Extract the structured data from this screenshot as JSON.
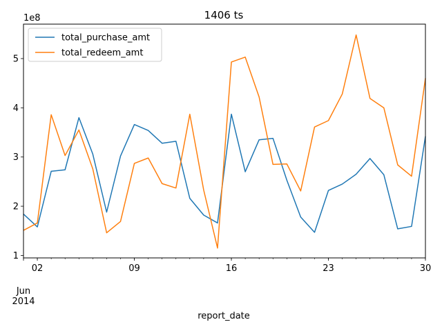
{
  "chart_data": {
    "type": "line",
    "title": "1406 ts",
    "xlabel": "report_date",
    "ylabel": "",
    "y_offset_label": "1e8",
    "y_scale_factor": 100000000,
    "x": [
      "2014-06-01",
      "2014-06-02",
      "2014-06-03",
      "2014-06-04",
      "2014-06-05",
      "2014-06-06",
      "2014-06-07",
      "2014-06-08",
      "2014-06-09",
      "2014-06-10",
      "2014-06-11",
      "2014-06-12",
      "2014-06-13",
      "2014-06-14",
      "2014-06-15",
      "2014-06-16",
      "2014-06-17",
      "2014-06-18",
      "2014-06-19",
      "2014-06-20",
      "2014-06-21",
      "2014-06-22",
      "2014-06-23",
      "2014-06-24",
      "2014-06-25",
      "2014-06-26",
      "2014-06-27",
      "2014-06-28",
      "2014-06-29",
      "2014-06-30"
    ],
    "xlim": [
      "2014-06-01",
      "2014-06-30"
    ],
    "ylim": [
      95000000,
      570000000
    ],
    "x_ticks": [
      {
        "label": "02",
        "date": "2014-06-02"
      },
      {
        "label": "09",
        "date": "2014-06-09"
      },
      {
        "label": "16",
        "date": "2014-06-16"
      },
      {
        "label": "23",
        "date": "2014-06-23"
      },
      {
        "label": "30",
        "date": "2014-06-30"
      }
    ],
    "x_secondary_label": [
      "Jun",
      "2014"
    ],
    "y_ticks": [
      {
        "label": "1",
        "value": 100000000
      },
      {
        "label": "2",
        "value": 200000000
      },
      {
        "label": "3",
        "value": 300000000
      },
      {
        "label": "4",
        "value": 400000000
      },
      {
        "label": "5",
        "value": 500000000
      }
    ],
    "grid": false,
    "legend_position": "upper-left",
    "series": [
      {
        "name": "total_purchase_amt",
        "color": "#1f77b4",
        "values": [
          184000000,
          158000000,
          271000000,
          274000000,
          380000000,
          306000000,
          188000000,
          302000000,
          366000000,
          354000000,
          328000000,
          332000000,
          216000000,
          182000000,
          166000000,
          387000000,
          270000000,
          335000000,
          338000000,
          253000000,
          178000000,
          147000000,
          232000000,
          245000000,
          265000000,
          297000000,
          264000000,
          154000000,
          159000000,
          342000000
        ]
      },
      {
        "name": "total_redeem_amt",
        "color": "#ff7f0e",
        "values": [
          151000000,
          166000000,
          386000000,
          303000000,
          355000000,
          276000000,
          146000000,
          169000000,
          287000000,
          298000000,
          246000000,
          237000000,
          387000000,
          233000000,
          115000000,
          493000000,
          503000000,
          422000000,
          285000000,
          286000000,
          231000000,
          361000000,
          374000000,
          428000000,
          548000000,
          419000000,
          400000000,
          284000000,
          261000000,
          460000000
        ]
      }
    ]
  }
}
